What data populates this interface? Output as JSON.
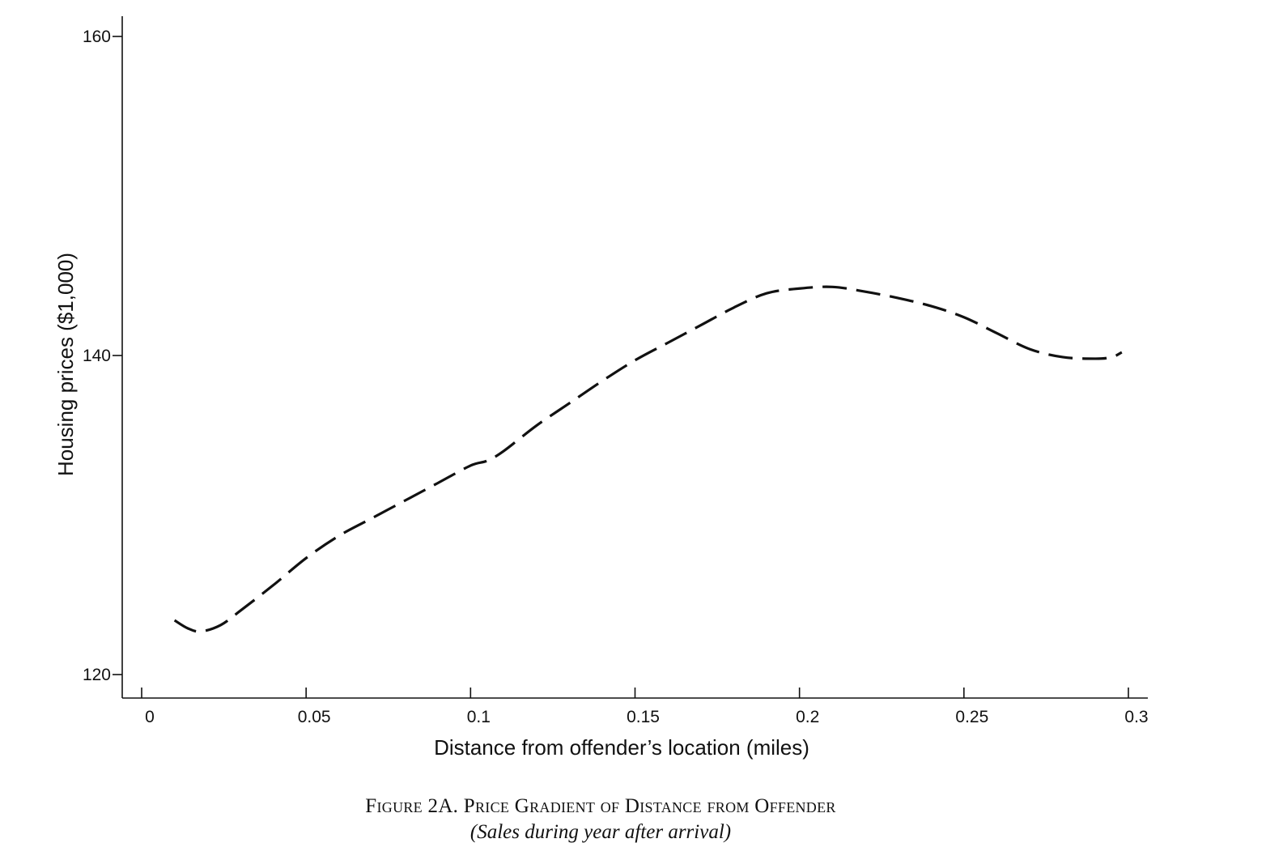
{
  "chart_data": {
    "type": "line",
    "title": "Figure 2A. Price Gradient of Distance from Offender",
    "subtitle": "(Sales during year after arrival)",
    "xlabel": "Distance from offender’s location (miles)",
    "ylabel": "Housing prices ($1,000)",
    "xlim": [
      -0.006,
      0.306
    ],
    "ylim": [
      118.6,
      161.2
    ],
    "xticks": [
      0,
      0.05,
      0.1,
      0.15,
      0.2,
      0.25,
      0.3
    ],
    "xtick_labels": [
      "0",
      "0.05",
      "0.1",
      "0.15",
      "0.2",
      "0.25",
      "0.3"
    ],
    "yticks": [
      120,
      140,
      160
    ],
    "ytick_labels": [
      "120",
      "140",
      "160"
    ],
    "grid": false,
    "series": [
      {
        "line_style": "dashed",
        "color": "#111111",
        "x": [
          0.01,
          0.014,
          0.018,
          0.024,
          0.03,
          0.04,
          0.05,
          0.06,
          0.07,
          0.08,
          0.09,
          0.1,
          0.105,
          0.11,
          0.12,
          0.13,
          0.14,
          0.15,
          0.16,
          0.17,
          0.18,
          0.19,
          0.2,
          0.21,
          0.22,
          0.23,
          0.24,
          0.25,
          0.26,
          0.27,
          0.28,
          0.29,
          0.295,
          0.298
        ],
        "y": [
          123.4,
          122.9,
          122.7,
          123.1,
          124.0,
          125.6,
          127.3,
          128.7,
          129.8,
          130.9,
          132.0,
          133.1,
          133.4,
          134.0,
          135.6,
          137.0,
          138.4,
          139.7,
          140.8,
          141.9,
          143.0,
          143.9,
          144.2,
          144.3,
          144.0,
          143.6,
          143.1,
          142.4,
          141.4,
          140.4,
          139.9,
          139.8,
          139.9,
          140.2
        ]
      }
    ]
  }
}
